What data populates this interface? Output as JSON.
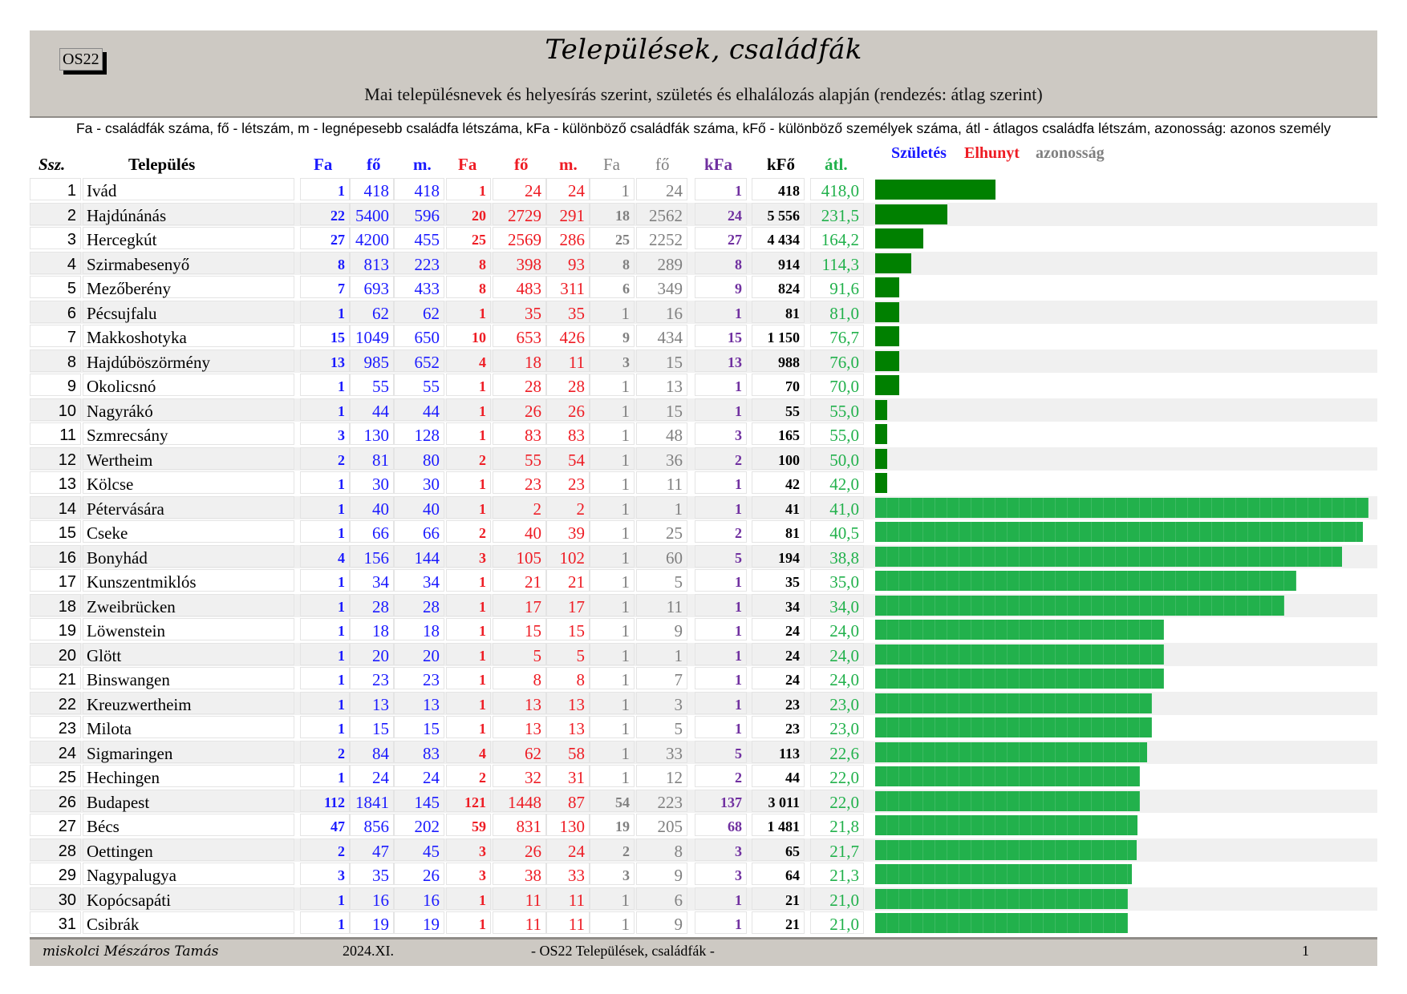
{
  "header": {
    "code": "OS22",
    "title": "Települések, családfák",
    "subtitle": "Mai településnevek és helyesírás szerint, születés és elhalálozás alapján  (rendezés: átlag szerint)"
  },
  "legend_line": "Fa - családfák száma, fő - létszám, m - legnépesebb családfa létszáma, kFa - különböző családfák száma, kFő - különböző személyek száma, átl - átlagos családfa létszám, azonosság: azonos személy",
  "columns": {
    "ssz": "Ssz.",
    "name": "Település",
    "b_fa": "Fa",
    "b_fo": "fő",
    "b_m": "m.",
    "r_fa": "Fa",
    "r_fo": "fő",
    "r_m": "m.",
    "g_fa": "Fa",
    "g_fo": "fő",
    "kfa": "kFa",
    "kfo": "kFő",
    "atl": "átl."
  },
  "legend": {
    "birth": "Születés",
    "death": "Elhunyt",
    "identity": "azonosság"
  },
  "colors": {
    "birth": "#1a1aff",
    "death": "#ee1c24",
    "identity": "#808080",
    "kfa": "#7030a0",
    "avg": "#22b14c",
    "bar_dark": "#008000",
    "bar_light": "#22b14c"
  },
  "rows": [
    {
      "ssz": "1",
      "name": "Ivád",
      "b_fa": "1",
      "b_fo": "418",
      "b_m": "418",
      "r_fa": "1",
      "r_fo": "24",
      "r_m": "24",
      "g_fa": "1",
      "g_fo": "24",
      "kfa": "1",
      "kfo": "418",
      "atl": "418,0",
      "atl_value": 418.0,
      "bar_group": 1
    },
    {
      "ssz": "2",
      "name": "Hajdúnánás",
      "b_fa": "22",
      "b_fo": "5400",
      "b_m": "596",
      "r_fa": "20",
      "r_fo": "2729",
      "r_m": "291",
      "g_fa": "18",
      "g_fo": "2562",
      "kfa": "24",
      "kfo": "5 556",
      "atl": "231,5",
      "atl_value": 231.5,
      "bar_group": 1
    },
    {
      "ssz": "3",
      "name": "Hercegkút",
      "b_fa": "27",
      "b_fo": "4200",
      "b_m": "455",
      "r_fa": "25",
      "r_fo": "2569",
      "r_m": "286",
      "g_fa": "25",
      "g_fo": "2252",
      "kfa": "27",
      "kfo": "4 434",
      "atl": "164,2",
      "atl_value": 164.2,
      "bar_group": 1
    },
    {
      "ssz": "4",
      "name": "Szirmabesenyő",
      "b_fa": "8",
      "b_fo": "813",
      "b_m": "223",
      "r_fa": "8",
      "r_fo": "398",
      "r_m": "93",
      "g_fa": "8",
      "g_fo": "289",
      "kfa": "8",
      "kfo": "914",
      "atl": "114,3",
      "atl_value": 114.3,
      "bar_group": 1
    },
    {
      "ssz": "5",
      "name": "Mezőberény",
      "b_fa": "7",
      "b_fo": "693",
      "b_m": "433",
      "r_fa": "8",
      "r_fo": "483",
      "r_m": "311",
      "g_fa": "6",
      "g_fo": "349",
      "kfa": "9",
      "kfo": "824",
      "atl": "91,6",
      "atl_value": 91.6,
      "bar_group": 1
    },
    {
      "ssz": "6",
      "name": "Pécsujfalu",
      "b_fa": "1",
      "b_fo": "62",
      "b_m": "62",
      "r_fa": "1",
      "r_fo": "35",
      "r_m": "35",
      "g_fa": "1",
      "g_fo": "16",
      "kfa": "1",
      "kfo": "81",
      "atl": "81,0",
      "atl_value": 81.0,
      "bar_group": 1
    },
    {
      "ssz": "7",
      "name": "Makkoshotyka",
      "b_fa": "15",
      "b_fo": "1049",
      "b_m": "650",
      "r_fa": "10",
      "r_fo": "653",
      "r_m": "426",
      "g_fa": "9",
      "g_fo": "434",
      "kfa": "15",
      "kfo": "1 150",
      "atl": "76,7",
      "atl_value": 76.7,
      "bar_group": 1
    },
    {
      "ssz": "8",
      "name": "Hajdúböszörmény",
      "b_fa": "13",
      "b_fo": "985",
      "b_m": "652",
      "r_fa": "4",
      "r_fo": "18",
      "r_m": "11",
      "g_fa": "3",
      "g_fo": "15",
      "kfa": "13",
      "kfo": "988",
      "atl": "76,0",
      "atl_value": 76.0,
      "bar_group": 1
    },
    {
      "ssz": "9",
      "name": "Okolicsnó",
      "b_fa": "1",
      "b_fo": "55",
      "b_m": "55",
      "r_fa": "1",
      "r_fo": "28",
      "r_m": "28",
      "g_fa": "1",
      "g_fo": "13",
      "kfa": "1",
      "kfo": "70",
      "atl": "70,0",
      "atl_value": 70.0,
      "bar_group": 1
    },
    {
      "ssz": "10",
      "name": "Nagyrákó",
      "b_fa": "1",
      "b_fo": "44",
      "b_m": "44",
      "r_fa": "1",
      "r_fo": "26",
      "r_m": "26",
      "g_fa": "1",
      "g_fo": "15",
      "kfa": "1",
      "kfo": "55",
      "atl": "55,0",
      "atl_value": 55.0,
      "bar_group": 1
    },
    {
      "ssz": "11",
      "name": "Szmrecsány",
      "b_fa": "3",
      "b_fo": "130",
      "b_m": "128",
      "r_fa": "1",
      "r_fo": "83",
      "r_m": "83",
      "g_fa": "1",
      "g_fo": "48",
      "kfa": "3",
      "kfo": "165",
      "atl": "55,0",
      "atl_value": 55.0,
      "bar_group": 1
    },
    {
      "ssz": "12",
      "name": "Wertheim",
      "b_fa": "2",
      "b_fo": "81",
      "b_m": "80",
      "r_fa": "2",
      "r_fo": "55",
      "r_m": "54",
      "g_fa": "1",
      "g_fo": "36",
      "kfa": "2",
      "kfo": "100",
      "atl": "50,0",
      "atl_value": 50.0,
      "bar_group": 1
    },
    {
      "ssz": "13",
      "name": "Kölcse",
      "b_fa": "1",
      "b_fo": "30",
      "b_m": "30",
      "r_fa": "1",
      "r_fo": "23",
      "r_m": "23",
      "g_fa": "1",
      "g_fo": "11",
      "kfa": "1",
      "kfo": "42",
      "atl": "42,0",
      "atl_value": 42.0,
      "bar_group": 1
    },
    {
      "ssz": "14",
      "name": "Pétervására",
      "b_fa": "1",
      "b_fo": "40",
      "b_m": "40",
      "r_fa": "1",
      "r_fo": "2",
      "r_m": "2",
      "g_fa": "1",
      "g_fo": "1",
      "kfa": "1",
      "kfo": "41",
      "atl": "41,0",
      "atl_value": 41.0,
      "bar_group": 2
    },
    {
      "ssz": "15",
      "name": "Cseke",
      "b_fa": "1",
      "b_fo": "66",
      "b_m": "66",
      "r_fa": "2",
      "r_fo": "40",
      "r_m": "39",
      "g_fa": "1",
      "g_fo": "25",
      "kfa": "2",
      "kfo": "81",
      "atl": "40,5",
      "atl_value": 40.5,
      "bar_group": 2
    },
    {
      "ssz": "16",
      "name": "Bonyhád",
      "b_fa": "4",
      "b_fo": "156",
      "b_m": "144",
      "r_fa": "3",
      "r_fo": "105",
      "r_m": "102",
      "g_fa": "1",
      "g_fo": "60",
      "kfa": "5",
      "kfo": "194",
      "atl": "38,8",
      "atl_value": 38.8,
      "bar_group": 2
    },
    {
      "ssz": "17",
      "name": "Kunszentmiklós",
      "b_fa": "1",
      "b_fo": "34",
      "b_m": "34",
      "r_fa": "1",
      "r_fo": "21",
      "r_m": "21",
      "g_fa": "1",
      "g_fo": "5",
      "kfa": "1",
      "kfo": "35",
      "atl": "35,0",
      "atl_value": 35.0,
      "bar_group": 2
    },
    {
      "ssz": "18",
      "name": "Zweibrücken",
      "b_fa": "1",
      "b_fo": "28",
      "b_m": "28",
      "r_fa": "1",
      "r_fo": "17",
      "r_m": "17",
      "g_fa": "1",
      "g_fo": "11",
      "kfa": "1",
      "kfo": "34",
      "atl": "34,0",
      "atl_value": 34.0,
      "bar_group": 2
    },
    {
      "ssz": "19",
      "name": "Löwenstein",
      "b_fa": "1",
      "b_fo": "18",
      "b_m": "18",
      "r_fa": "1",
      "r_fo": "15",
      "r_m": "15",
      "g_fa": "1",
      "g_fo": "9",
      "kfa": "1",
      "kfo": "24",
      "atl": "24,0",
      "atl_value": 24.0,
      "bar_group": 2
    },
    {
      "ssz": "20",
      "name": "Glött",
      "b_fa": "1",
      "b_fo": "20",
      "b_m": "20",
      "r_fa": "1",
      "r_fo": "5",
      "r_m": "5",
      "g_fa": "1",
      "g_fo": "1",
      "kfa": "1",
      "kfo": "24",
      "atl": "24,0",
      "atl_value": 24.0,
      "bar_group": 2
    },
    {
      "ssz": "21",
      "name": "Binswangen",
      "b_fa": "1",
      "b_fo": "23",
      "b_m": "23",
      "r_fa": "1",
      "r_fo": "8",
      "r_m": "8",
      "g_fa": "1",
      "g_fo": "7",
      "kfa": "1",
      "kfo": "24",
      "atl": "24,0",
      "atl_value": 24.0,
      "bar_group": 2
    },
    {
      "ssz": "22",
      "name": "Kreuzwertheim",
      "b_fa": "1",
      "b_fo": "13",
      "b_m": "13",
      "r_fa": "1",
      "r_fo": "13",
      "r_m": "13",
      "g_fa": "1",
      "g_fo": "3",
      "kfa": "1",
      "kfo": "23",
      "atl": "23,0",
      "atl_value": 23.0,
      "bar_group": 2
    },
    {
      "ssz": "23",
      "name": "Milota",
      "b_fa": "1",
      "b_fo": "15",
      "b_m": "15",
      "r_fa": "1",
      "r_fo": "13",
      "r_m": "13",
      "g_fa": "1",
      "g_fo": "5",
      "kfa": "1",
      "kfo": "23",
      "atl": "23,0",
      "atl_value": 23.0,
      "bar_group": 2
    },
    {
      "ssz": "24",
      "name": "Sigmaringen",
      "b_fa": "2",
      "b_fo": "84",
      "b_m": "83",
      "r_fa": "4",
      "r_fo": "62",
      "r_m": "58",
      "g_fa": "1",
      "g_fo": "33",
      "kfa": "5",
      "kfo": "113",
      "atl": "22,6",
      "atl_value": 22.6,
      "bar_group": 2
    },
    {
      "ssz": "25",
      "name": "Hechingen",
      "b_fa": "1",
      "b_fo": "24",
      "b_m": "24",
      "r_fa": "2",
      "r_fo": "32",
      "r_m": "31",
      "g_fa": "1",
      "g_fo": "12",
      "kfa": "2",
      "kfo": "44",
      "atl": "22,0",
      "atl_value": 22.0,
      "bar_group": 2
    },
    {
      "ssz": "26",
      "name": "Budapest",
      "b_fa": "112",
      "b_fo": "1841",
      "b_m": "145",
      "r_fa": "121",
      "r_fo": "1448",
      "r_m": "87",
      "g_fa": "54",
      "g_fo": "223",
      "kfa": "137",
      "kfo": "3 011",
      "atl": "22,0",
      "atl_value": 22.0,
      "bar_group": 2
    },
    {
      "ssz": "27",
      "name": "Bécs",
      "b_fa": "47",
      "b_fo": "856",
      "b_m": "202",
      "r_fa": "59",
      "r_fo": "831",
      "r_m": "130",
      "g_fa": "19",
      "g_fo": "205",
      "kfa": "68",
      "kfo": "1 481",
      "atl": "21,8",
      "atl_value": 21.8,
      "bar_group": 2
    },
    {
      "ssz": "28",
      "name": "Oettingen",
      "b_fa": "2",
      "b_fo": "47",
      "b_m": "45",
      "r_fa": "3",
      "r_fo": "26",
      "r_m": "24",
      "g_fa": "2",
      "g_fo": "8",
      "kfa": "3",
      "kfo": "65",
      "atl": "21,7",
      "atl_value": 21.7,
      "bar_group": 2
    },
    {
      "ssz": "29",
      "name": "Nagypalugya",
      "b_fa": "3",
      "b_fo": "35",
      "b_m": "26",
      "r_fa": "3",
      "r_fo": "38",
      "r_m": "33",
      "g_fa": "3",
      "g_fo": "9",
      "kfa": "3",
      "kfo": "64",
      "atl": "21,3",
      "atl_value": 21.3,
      "bar_group": 2
    },
    {
      "ssz": "30",
      "name": "Kopócsapáti",
      "b_fa": "1",
      "b_fo": "16",
      "b_m": "16",
      "r_fa": "1",
      "r_fo": "11",
      "r_m": "11",
      "g_fa": "1",
      "g_fo": "6",
      "kfa": "1",
      "kfo": "21",
      "atl": "21,0",
      "atl_value": 21.0,
      "bar_group": 2
    },
    {
      "ssz": "31",
      "name": "Csibrák",
      "b_fa": "1",
      "b_fo": "19",
      "b_m": "19",
      "r_fa": "1",
      "r_fo": "11",
      "r_m": "11",
      "g_fa": "1",
      "g_fo": "9",
      "kfa": "1",
      "kfo": "21",
      "atl": "21,0",
      "atl_value": 21.0,
      "bar_group": 2
    }
  ],
  "footer": {
    "author": "miskolci Mészáros Tamás",
    "date": "2024.XI.",
    "doc_title": "- OS22  Települések, családfák -",
    "page": "1"
  }
}
